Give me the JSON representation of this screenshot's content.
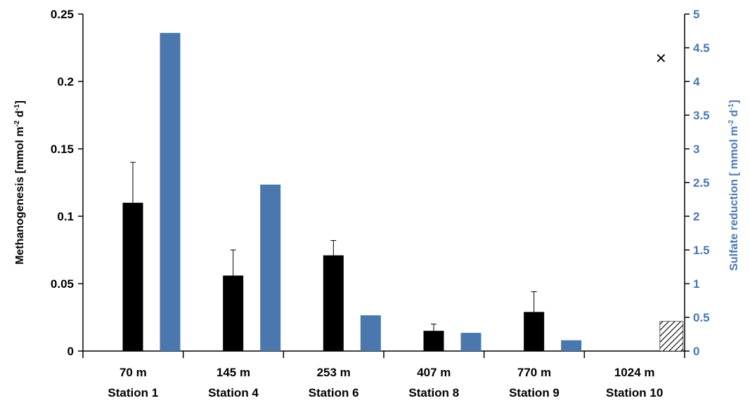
{
  "colors": {
    "methanogenesis": "#000000",
    "sulfate": "#4a78ae",
    "right_axis": "#4a78ae",
    "axis": "#000000"
  },
  "chart_data": {
    "type": "bar",
    "categories": [
      {
        "depth": "70 m",
        "station": "Station 1"
      },
      {
        "depth": "145 m",
        "station": "Station 4"
      },
      {
        "depth": "253 m",
        "station": "Station 6"
      },
      {
        "depth": "407 m",
        "station": "Station 8"
      },
      {
        "depth": "770 m",
        "station": "Station 9"
      },
      {
        "depth": "1024 m",
        "station": "Station 10"
      }
    ],
    "series": [
      {
        "axis": "left",
        "color": "#000000",
        "values": [
          0.11,
          0.056,
          0.071,
          0.015,
          0.029,
          null
        ],
        "error_up": [
          0.03,
          0.019,
          0.011,
          0.005,
          0.015,
          null
        ],
        "hatched": [
          null,
          null,
          null,
          null,
          null,
          0.022
        ]
      },
      {
        "axis": "right",
        "color": "#4a78ae",
        "values": [
          4.72,
          2.47,
          0.53,
          0.27,
          0.16,
          null
        ]
      }
    ],
    "markers": [
      {
        "category_index": 5,
        "axis": "right",
        "value": 4.35,
        "symbol": "×"
      }
    ],
    "left_axis": {
      "label_main": "Methanogenesis  [mmol m",
      "label_sup1": "-2",
      "label_mid": " d",
      "label_sup2": "-1",
      "label_end": "]",
      "ylim": [
        0,
        0.25
      ],
      "ticks": [
        "0",
        "0.05",
        "0.1",
        "0.15",
        "0.2",
        "0.25"
      ]
    },
    "right_axis": {
      "label_main": "Sulfate reduction [ mmol m",
      "label_sup1": "-2",
      "label_mid": " d",
      "label_sup2": "-1",
      "label_end": "]",
      "ylim": [
        0,
        5
      ],
      "ticks": [
        "0",
        "0.5",
        "1",
        "1.5",
        "2",
        "2.5",
        "3",
        "3.5",
        "4",
        "4.5",
        "5"
      ]
    },
    "grid": false,
    "legend": "none"
  }
}
